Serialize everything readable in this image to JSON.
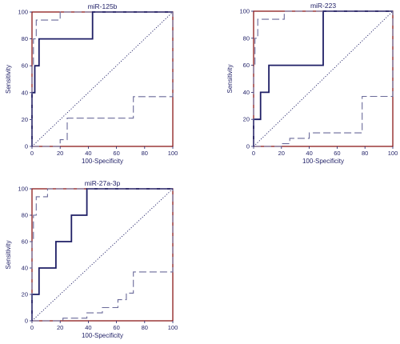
{
  "chart_data": [
    {
      "type": "line",
      "title": "miR-125b",
      "xlabel": "100-Specificity",
      "ylabel": "Sensitivity",
      "xlim": [
        0,
        100
      ],
      "ylim": [
        0,
        100
      ],
      "xticks": [
        "0",
        "20",
        "40",
        "60",
        "80",
        "100"
      ],
      "yticks": [
        "0",
        "20",
        "40",
        "60",
        "80",
        "100"
      ],
      "grid": false,
      "frame_color": "#8b1a1a",
      "series": [
        {
          "role": "roc",
          "color": "#1f1f66",
          "style": "solid",
          "x": [
            0,
            0,
            2,
            2,
            5,
            5,
            43,
            43,
            100
          ],
          "y": [
            0,
            40,
            40,
            60,
            60,
            80,
            80,
            100,
            100
          ]
        },
        {
          "role": "ci-upper",
          "color": "#6a6a9a",
          "style": "dashed",
          "x": [
            0,
            0,
            1,
            1,
            3,
            3,
            20,
            20,
            100
          ],
          "y": [
            0,
            60,
            60,
            80,
            80,
            94,
            94,
            100,
            100
          ]
        },
        {
          "role": "ci-lower",
          "color": "#6a6a9a",
          "style": "dashed",
          "x": [
            0,
            20,
            20,
            25,
            25,
            72,
            72,
            97,
            100,
            100
          ],
          "y": [
            0,
            0,
            5,
            5,
            21,
            21,
            37,
            37,
            37,
            100
          ]
        },
        {
          "role": "reference",
          "color": "#1f1f66",
          "style": "dotted",
          "x": [
            0,
            100
          ],
          "y": [
            0,
            100
          ]
        }
      ]
    },
    {
      "type": "line",
      "title": "miR-223",
      "xlabel": "100-Specificity",
      "ylabel": "Sensitivity",
      "xlim": [
        0,
        100
      ],
      "ylim": [
        0,
        100
      ],
      "xticks": [
        "0",
        "20",
        "40",
        "60",
        "80",
        "100"
      ],
      "yticks": [
        "0",
        "20",
        "40",
        "60",
        "80",
        "100"
      ],
      "grid": false,
      "frame_color": "#8b1a1a",
      "series": [
        {
          "role": "roc",
          "color": "#1f1f66",
          "style": "solid",
          "x": [
            0,
            0,
            5,
            5,
            11,
            11,
            50,
            50,
            100
          ],
          "y": [
            0,
            20,
            20,
            40,
            40,
            60,
            60,
            100,
            100
          ]
        },
        {
          "role": "ci-upper",
          "color": "#6a6a9a",
          "style": "dashed",
          "x": [
            0,
            0,
            1,
            1,
            3,
            3,
            22,
            22,
            100
          ],
          "y": [
            0,
            60,
            60,
            80,
            80,
            94,
            94,
            100,
            100
          ]
        },
        {
          "role": "ci-lower",
          "color": "#6a6a9a",
          "style": "dashed",
          "x": [
            0,
            20,
            20,
            26,
            26,
            40,
            40,
            78,
            78,
            98,
            100,
            100
          ],
          "y": [
            0,
            0,
            2,
            2,
            6,
            6,
            10,
            10,
            37,
            37,
            37,
            100
          ]
        },
        {
          "role": "reference",
          "color": "#1f1f66",
          "style": "dotted",
          "x": [
            0,
            100
          ],
          "y": [
            0,
            100
          ]
        }
      ]
    },
    {
      "type": "line",
      "title": "miR-27a-3p",
      "xlabel": "100-Specificity",
      "ylabel": "Sensitivity",
      "xlim": [
        0,
        100
      ],
      "ylim": [
        0,
        100
      ],
      "xticks": [
        "0",
        "20",
        "40",
        "60",
        "80",
        "100"
      ],
      "yticks": [
        "0",
        "20",
        "40",
        "60",
        "80",
        "100"
      ],
      "grid": false,
      "frame_color": "#8b1a1a",
      "series": [
        {
          "role": "roc",
          "color": "#1f1f66",
          "style": "solid",
          "x": [
            0,
            0,
            5,
            5,
            17,
            17,
            28,
            28,
            39,
            39,
            100
          ],
          "y": [
            0,
            20,
            20,
            40,
            40,
            60,
            60,
            80,
            80,
            100,
            100
          ]
        },
        {
          "role": "ci-upper",
          "color": "#6a6a9a",
          "style": "dashed",
          "x": [
            0,
            0,
            1,
            1,
            3,
            3,
            11,
            11,
            100
          ],
          "y": [
            0,
            60,
            60,
            80,
            80,
            94,
            94,
            100,
            100
          ]
        },
        {
          "role": "ci-lower",
          "color": "#6a6a9a",
          "style": "dashed",
          "x": [
            0,
            22,
            22,
            39,
            39,
            50,
            50,
            61,
            61,
            67,
            67,
            72,
            72,
            97,
            100,
            100
          ],
          "y": [
            0,
            0,
            2,
            2,
            6,
            6,
            10,
            10,
            16,
            16,
            21,
            21,
            37,
            37,
            37,
            100
          ]
        },
        {
          "role": "reference",
          "color": "#1f1f66",
          "style": "dotted",
          "x": [
            0,
            100
          ],
          "y": [
            0,
            100
          ]
        }
      ]
    }
  ]
}
